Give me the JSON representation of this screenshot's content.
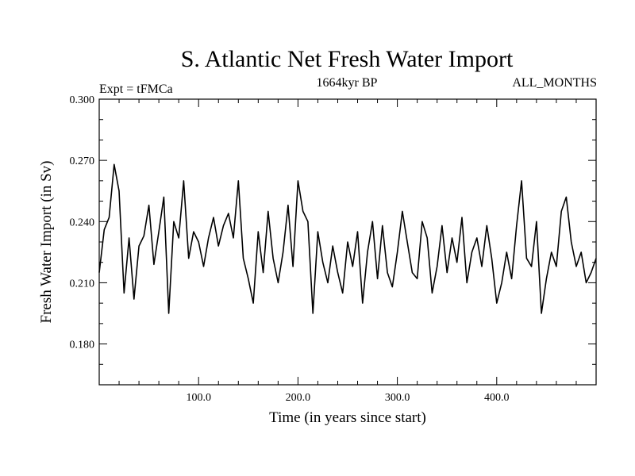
{
  "chart_data": {
    "type": "line",
    "title": "S. Atlantic Net Fresh Water Import",
    "subtitle_left": "Expt = tFMCa",
    "subtitle_center": "1664kyr BP",
    "subtitle_right": "ALL_MONTHS",
    "xlabel": "Time (in years since start)",
    "ylabel": "Fresh Water Import (in Sv)",
    "xlim": [
      0,
      500
    ],
    "ylim": [
      0.16,
      0.3
    ],
    "x_ticks": [
      100,
      200,
      300,
      400
    ],
    "x_tick_labels": [
      "100.0",
      "200.0",
      "300.0",
      "400.0"
    ],
    "y_ticks": [
      0.18,
      0.21,
      0.24,
      0.27,
      0.3
    ],
    "y_tick_labels": [
      "0.180",
      "0.210",
      "0.240",
      "0.270",
      "0.300"
    ],
    "grid": false,
    "series": [
      {
        "color": "#000000",
        "x": [
          0,
          5,
          10,
          15,
          20,
          25,
          30,
          35,
          40,
          45,
          50,
          55,
          60,
          65,
          70,
          75,
          80,
          85,
          90,
          95,
          100,
          105,
          110,
          115,
          120,
          125,
          130,
          135,
          140,
          145,
          150,
          155,
          160,
          165,
          170,
          175,
          180,
          185,
          190,
          195,
          200,
          205,
          210,
          215,
          220,
          225,
          230,
          235,
          240,
          245,
          250,
          255,
          260,
          265,
          270,
          275,
          280,
          285,
          290,
          295,
          300,
          305,
          310,
          315,
          320,
          325,
          330,
          335,
          340,
          345,
          350,
          355,
          360,
          365,
          370,
          375,
          380,
          385,
          390,
          395,
          400,
          405,
          410,
          415,
          420,
          425,
          430,
          435,
          440,
          445,
          450,
          455,
          460,
          465,
          470,
          475,
          480,
          485,
          490,
          495,
          500
        ],
        "values": [
          0.215,
          0.236,
          0.242,
          0.268,
          0.255,
          0.205,
          0.232,
          0.202,
          0.228,
          0.233,
          0.248,
          0.219,
          0.235,
          0.252,
          0.195,
          0.24,
          0.232,
          0.26,
          0.222,
          0.235,
          0.23,
          0.218,
          0.232,
          0.242,
          0.228,
          0.238,
          0.244,
          0.232,
          0.26,
          0.222,
          0.212,
          0.2,
          0.235,
          0.215,
          0.245,
          0.222,
          0.21,
          0.225,
          0.248,
          0.218,
          0.26,
          0.245,
          0.24,
          0.195,
          0.235,
          0.22,
          0.21,
          0.228,
          0.215,
          0.205,
          0.23,
          0.218,
          0.235,
          0.2,
          0.225,
          0.24,
          0.212,
          0.238,
          0.215,
          0.208,
          0.225,
          0.245,
          0.23,
          0.215,
          0.212,
          0.24,
          0.232,
          0.205,
          0.218,
          0.238,
          0.215,
          0.232,
          0.22,
          0.242,
          0.21,
          0.225,
          0.232,
          0.218,
          0.238,
          0.222,
          0.2,
          0.21,
          0.225,
          0.212,
          0.238,
          0.26,
          0.222,
          0.218,
          0.24,
          0.195,
          0.212,
          0.225,
          0.218,
          0.245,
          0.252,
          0.23,
          0.218,
          0.225,
          0.21,
          0.215,
          0.222
        ]
      }
    ]
  }
}
